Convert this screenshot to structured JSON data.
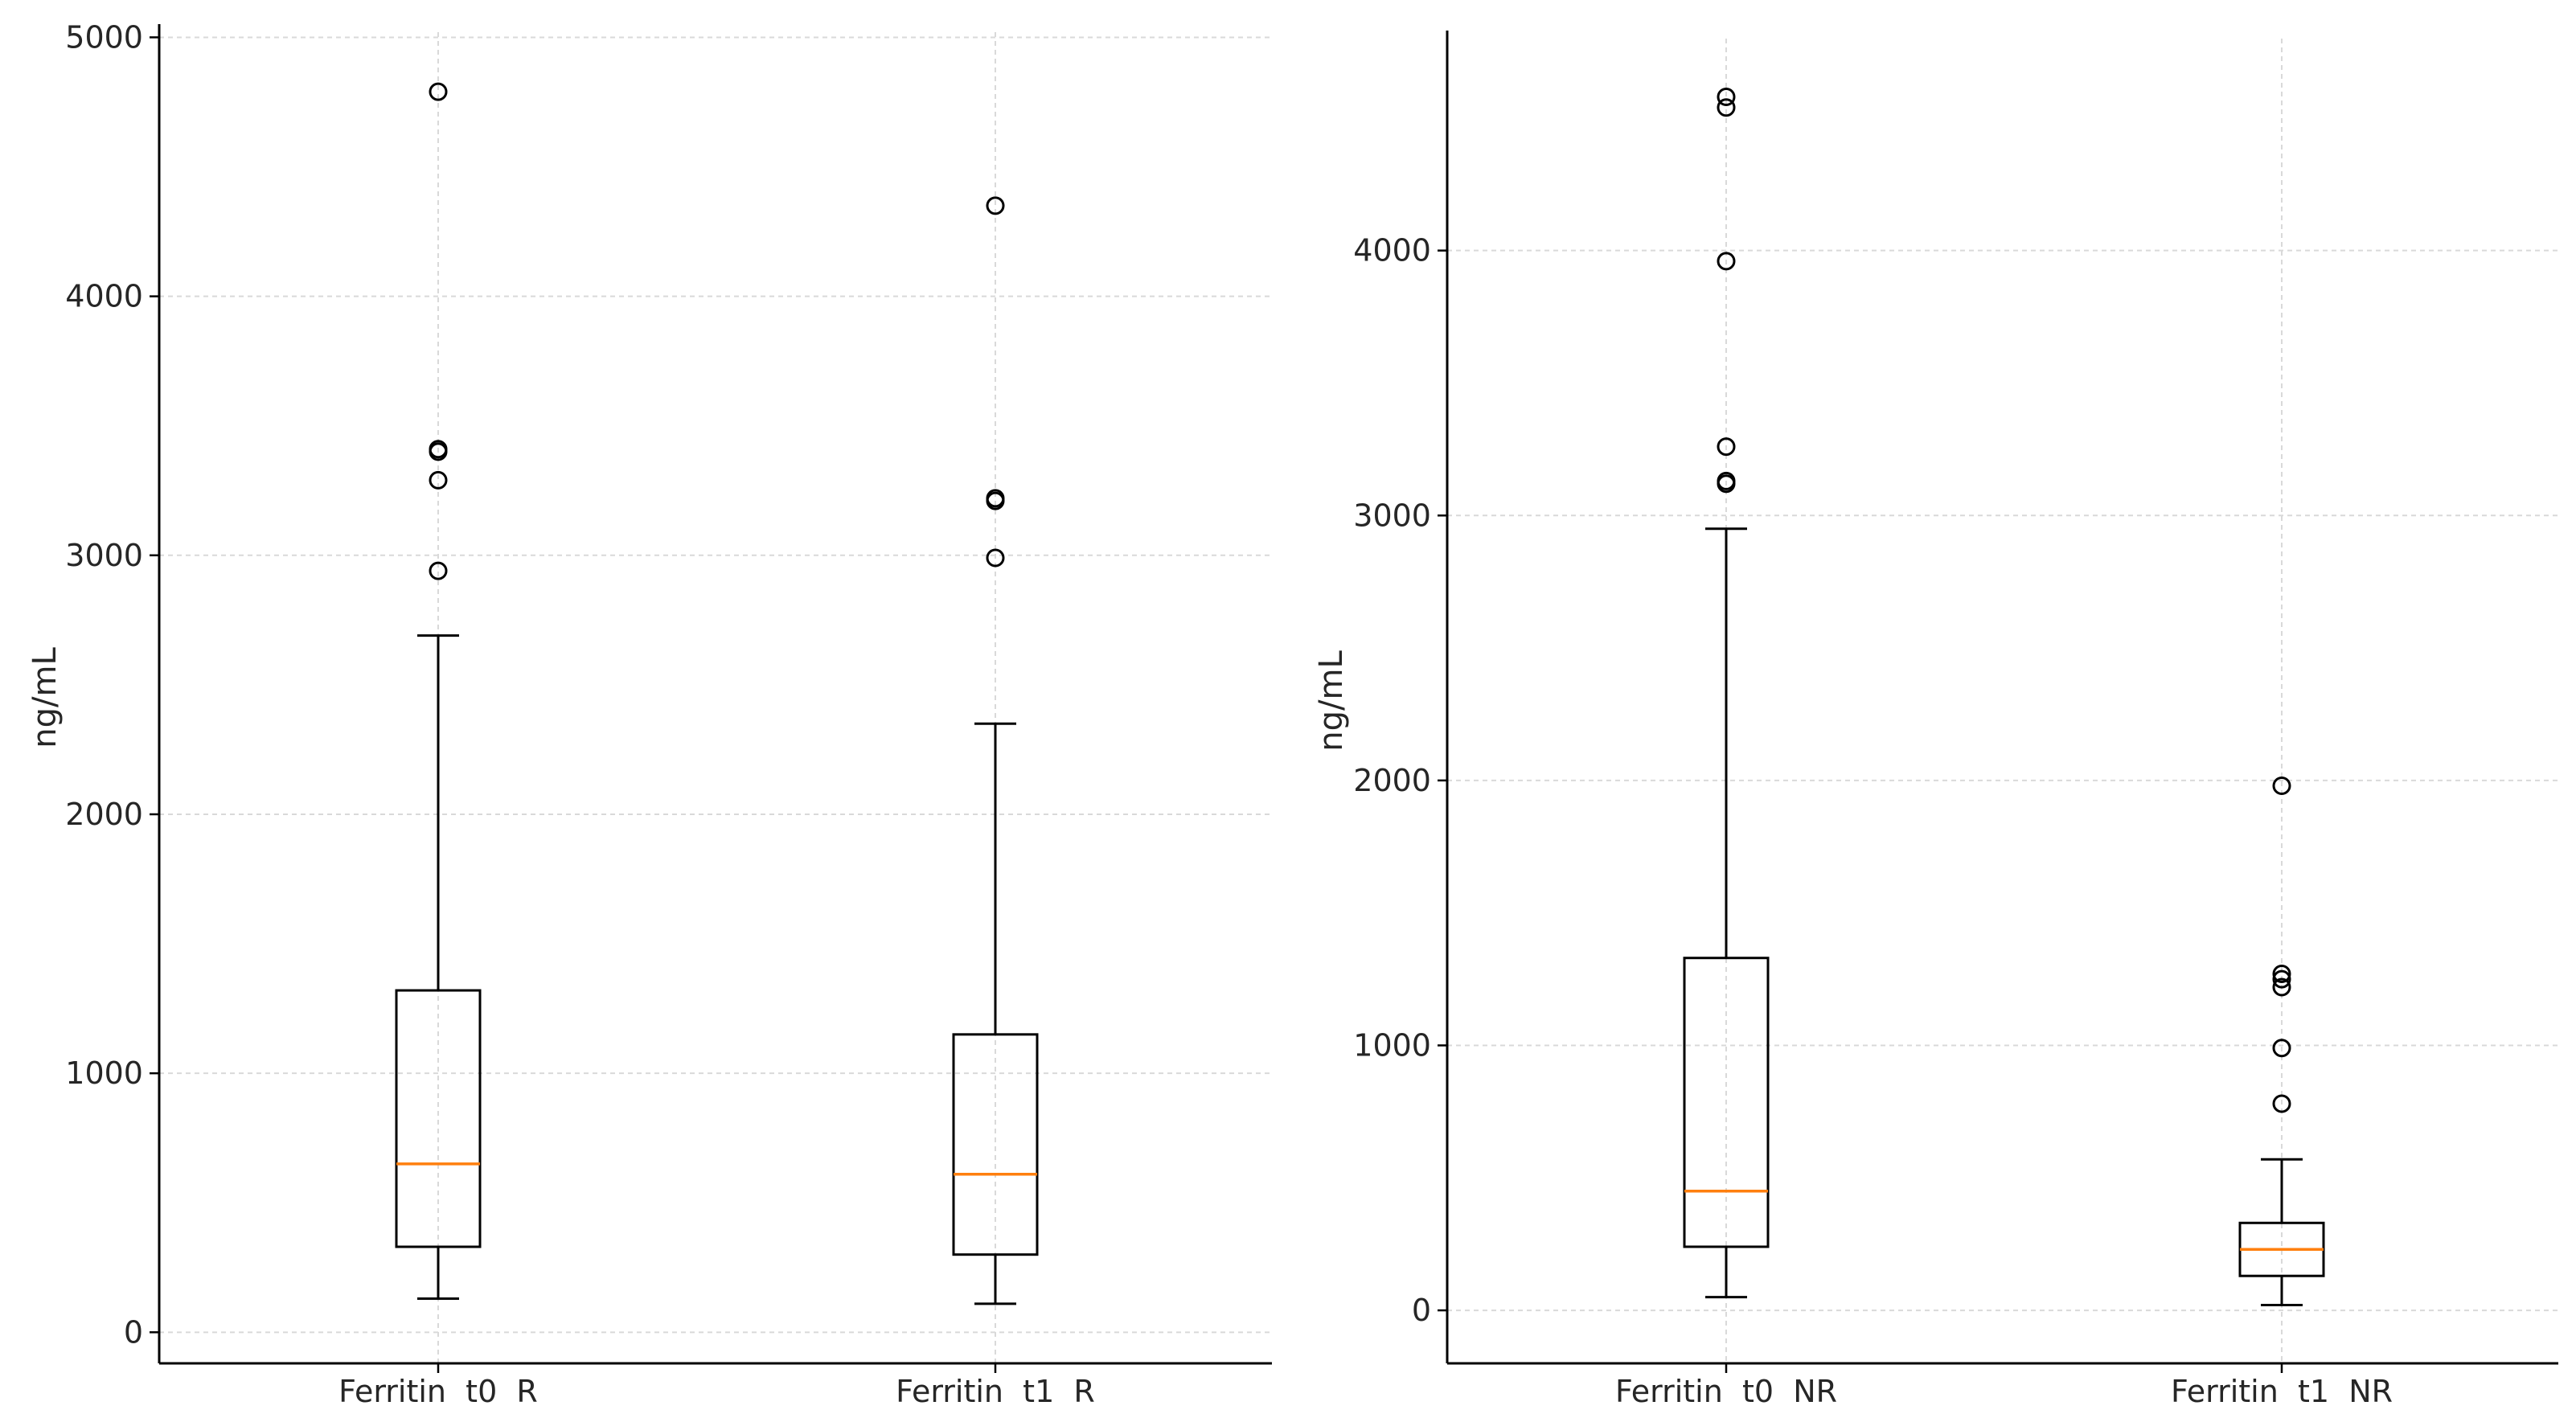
{
  "chart_data": [
    {
      "type": "box",
      "title": "",
      "xlabel": "",
      "ylabel": "ng/mL",
      "ylim": [
        -120,
        5020
      ],
      "yticks": [
        0,
        1000,
        2000,
        3000,
        4000,
        5000
      ],
      "ytick_labels": [
        "0",
        "1000",
        "2000",
        "3000",
        "4000",
        "5000"
      ],
      "grid": true,
      "colors": {
        "box": "#000000",
        "median": "#ff7f0e",
        "grid": "#d9d9d9"
      },
      "categories": [
        "Ferritin  t0  R",
        "Ferritin  t1  R"
      ],
      "boxes": [
        {
          "label": "Ferritin  t0  R",
          "whisker_low": 130,
          "q1": 330,
          "median": 650,
          "q3": 1320,
          "whisker_high": 2690,
          "outliers": [
            2940,
            3290,
            3400,
            3410,
            4790
          ]
        },
        {
          "label": "Ferritin  t1  R",
          "whisker_low": 110,
          "q1": 300,
          "median": 610,
          "q3": 1150,
          "whisker_high": 2350,
          "outliers": [
            2990,
            3210,
            3220,
            4350
          ]
        }
      ]
    },
    {
      "type": "box",
      "title": "",
      "xlabel": "",
      "ylabel": "ng/mL",
      "ylim": [
        -200,
        4800
      ],
      "yticks": [
        0,
        1000,
        2000,
        3000,
        4000
      ],
      "ytick_labels": [
        "0",
        "1000",
        "2000",
        "3000",
        "4000"
      ],
      "grid": true,
      "colors": {
        "box": "#000000",
        "median": "#ff7f0e",
        "grid": "#d9d9d9"
      },
      "categories": [
        "Ferritin  t0  NR",
        "Ferritin  t1  NR"
      ],
      "boxes": [
        {
          "label": "Ferritin  t0  NR",
          "whisker_low": 50,
          "q1": 240,
          "median": 450,
          "q3": 1330,
          "whisker_high": 2950,
          "outliers": [
            3120,
            3130,
            3260,
            3960,
            4540,
            4580
          ]
        },
        {
          "label": "Ferritin  t1  NR",
          "whisker_low": 20,
          "q1": 130,
          "median": 230,
          "q3": 330,
          "whisker_high": 570,
          "outliers": [
            780,
            990,
            1220,
            1250,
            1270,
            1980
          ]
        }
      ]
    }
  ]
}
